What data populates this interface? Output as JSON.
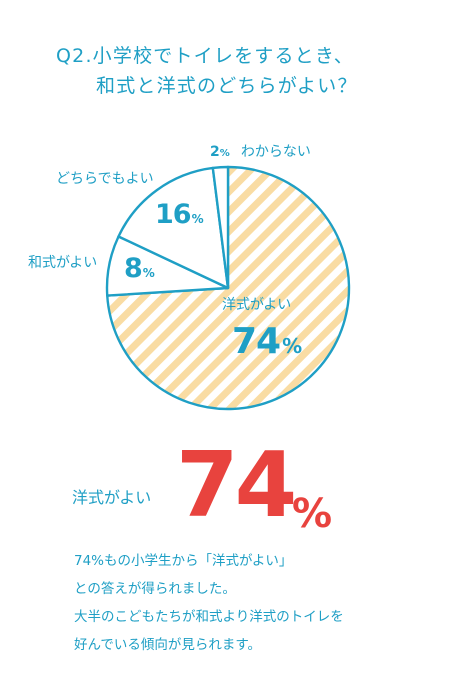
{
  "question": {
    "line1": "Q2.小学校でトイレをするとき、",
    "line2": "和式と洋式のどちらがよい？"
  },
  "colors": {
    "accent": "#1f9fc5",
    "highlight": "#e8433e",
    "stripe": "#f9dca3"
  },
  "chart_data": {
    "type": "pie",
    "categories": [
      "洋式がよい",
      "和式がよい",
      "どちらでもよい",
      "わからない"
    ],
    "values": [
      74,
      8,
      16,
      2
    ],
    "value_labels": [
      "74",
      "8",
      "16",
      "2"
    ],
    "unit": "%",
    "title": ""
  },
  "result": {
    "label": "洋式がよい",
    "value": "74",
    "unit": "%"
  },
  "summary": [
    "74%もの小学生から「洋式がよい」",
    "との答えが得られました。",
    "大半のこどもたちが和式より洋式のトイレを",
    "好んでいる傾向が見られます。"
  ]
}
